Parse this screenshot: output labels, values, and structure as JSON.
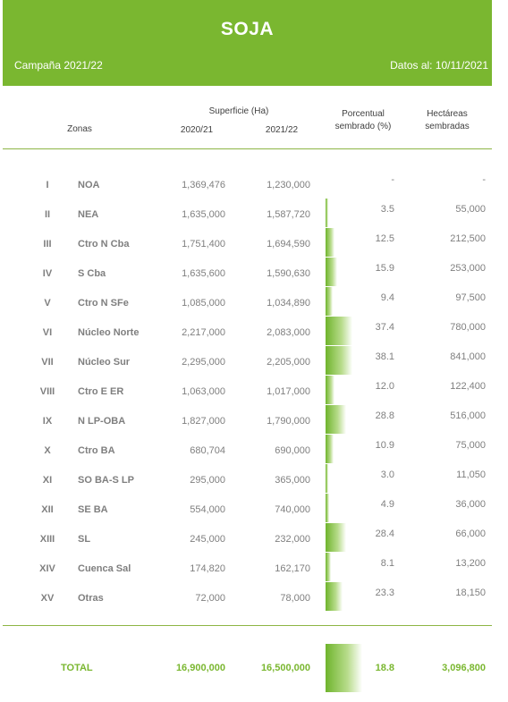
{
  "header": {
    "title": "SOJA",
    "campaign": "Campaña 2021/22",
    "date": "Datos al: 10/11/2021"
  },
  "columns": {
    "zonas": "Zonas",
    "superficie": "Superficie (Ha)",
    "y2020": "2020/21",
    "y2021": "2021/22",
    "porcentual_1": "Porcentual",
    "porcentual_2": "sembrado (%)",
    "hectareas_1": "Hectáreas",
    "hectareas_2": "sembradas"
  },
  "rows": [
    {
      "num": "I",
      "zone": "NOA",
      "v2020": "1,369,476",
      "v2021": "1,230,000",
      "pct": "-",
      "pct_value": 0,
      "has": "-"
    },
    {
      "num": "II",
      "zone": "NEA",
      "v2020": "1,635,000",
      "v2021": "1,587,720",
      "pct": "3.5",
      "pct_value": 3.5,
      "has": "55,000"
    },
    {
      "num": "III",
      "zone": "Ctro N Cba",
      "v2020": "1,751,400",
      "v2021": "1,694,590",
      "pct": "12.5",
      "pct_value": 12.5,
      "has": "212,500"
    },
    {
      "num": "IV",
      "zone": "S Cba",
      "v2020": "1,635,600",
      "v2021": "1,590,630",
      "pct": "15.9",
      "pct_value": 15.9,
      "has": "253,000"
    },
    {
      "num": "V",
      "zone": "Ctro N SFe",
      "v2020": "1,085,000",
      "v2021": "1,034,890",
      "pct": "9.4",
      "pct_value": 9.4,
      "has": "97,500"
    },
    {
      "num": "VI",
      "zone": "Núcleo Norte",
      "v2020": "2,217,000",
      "v2021": "2,083,000",
      "pct": "37.4",
      "pct_value": 37.4,
      "has": "780,000"
    },
    {
      "num": "VII",
      "zone": "Núcleo Sur",
      "v2020": "2,295,000",
      "v2021": "2,205,000",
      "pct": "38.1",
      "pct_value": 38.1,
      "has": "841,000"
    },
    {
      "num": "VIII",
      "zone": "Ctro E ER",
      "v2020": "1,063,000",
      "v2021": "1,017,000",
      "pct": "12.0",
      "pct_value": 12.0,
      "has": "122,400"
    },
    {
      "num": "IX",
      "zone": "N LP-OBA",
      "v2020": "1,827,000",
      "v2021": "1,790,000",
      "pct": "28.8",
      "pct_value": 28.8,
      "has": "516,000"
    },
    {
      "num": "X",
      "zone": "Ctro BA",
      "v2020": "680,704",
      "v2021": "690,000",
      "pct": "10.9",
      "pct_value": 10.9,
      "has": "75,000"
    },
    {
      "num": "XI",
      "zone": "SO BA-S LP",
      "v2020": "295,000",
      "v2021": "365,000",
      "pct": "3.0",
      "pct_value": 3.0,
      "has": "11,050"
    },
    {
      "num": "XII",
      "zone": "SE BA",
      "v2020": "554,000",
      "v2021": "740,000",
      "pct": "4.9",
      "pct_value": 4.9,
      "has": "36,000"
    },
    {
      "num": "XIII",
      "zone": "SL",
      "v2020": "245,000",
      "v2021": "232,000",
      "pct": "28.4",
      "pct_value": 28.4,
      "has": "66,000"
    },
    {
      "num": "XIV",
      "zone": "Cuenca Sal",
      "v2020": "174,820",
      "v2021": "162,170",
      "pct": "8.1",
      "pct_value": 8.1,
      "has": "13,200"
    },
    {
      "num": "XV",
      "zone": "Otras",
      "v2020": "72,000",
      "v2021": "78,000",
      "pct": "23.3",
      "pct_value": 23.3,
      "has": "18,150"
    }
  ],
  "total": {
    "label": "TOTAL",
    "v2020": "16,900,000",
    "v2021": "16,500,000",
    "pct": "18.8",
    "has": "3,096,800"
  },
  "colors": {
    "brand_green": "#7ab730",
    "bar_green": "#6fb42c"
  }
}
